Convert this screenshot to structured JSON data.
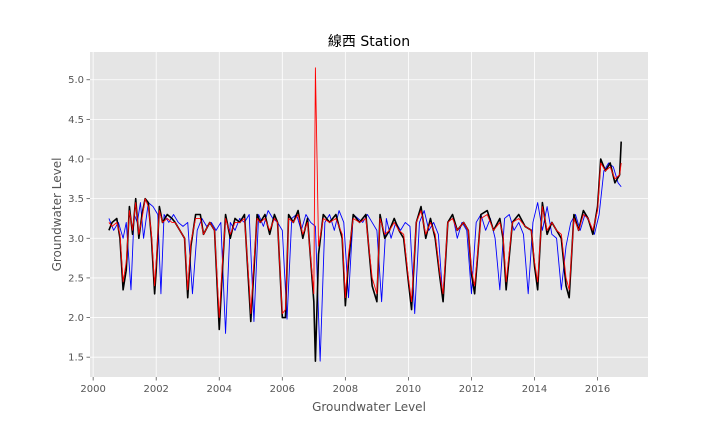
{
  "chart_data": {
    "type": "line",
    "title": "線西 Station",
    "xlabel": "Groundwater Level",
    "ylabel": "Groundwater Level",
    "xlim": [
      1999.9,
      2017.6
    ],
    "ylim": [
      1.25,
      5.35
    ],
    "x_ticks": [
      2000,
      2002,
      2004,
      2006,
      2008,
      2010,
      2012,
      2014,
      2016
    ],
    "y_ticks": [
      1.5,
      2.0,
      2.5,
      3.0,
      3.5,
      4.0,
      4.5,
      5.0
    ],
    "grid": true,
    "legend": "none",
    "colors": {
      "background": "#e5e5e5",
      "grid": "#ffffff",
      "black_series": "#000000",
      "red_series": "#ff0000",
      "blue_series": "#0000ff"
    },
    "series": [
      {
        "color": "#000000",
        "x": [
          2000.5,
          2000.6,
          2000.75,
          2000.85,
          2000.95,
          2001.05,
          2001.15,
          2001.25,
          2001.35,
          2001.45,
          2001.55,
          2001.65,
          2001.75,
          2001.85,
          2001.95,
          2002.0,
          2002.1,
          2002.2,
          2002.35,
          2002.5,
          2002.6,
          2002.75,
          2002.9,
          2003.0,
          2003.1,
          2003.25,
          2003.4,
          2003.5,
          2003.7,
          2003.85,
          2004.0,
          2004.1,
          2004.2,
          2004.35,
          2004.5,
          2004.65,
          2004.8,
          2004.95,
          2005.0,
          2005.1,
          2005.2,
          2005.3,
          2005.45,
          2005.6,
          2005.75,
          2005.85,
          2006.0,
          2006.1,
          2006.2,
          2006.35,
          2006.5,
          2006.65,
          2006.8,
          2007.0,
          2007.05,
          2007.15,
          2007.3,
          2007.5,
          2007.7,
          2007.9,
          2008.0,
          2008.1,
          2008.25,
          2008.45,
          2008.65,
          2008.85,
          2009.0,
          2009.1,
          2009.25,
          2009.4,
          2009.55,
          2009.7,
          2009.85,
          2010.0,
          2010.1,
          2010.25,
          2010.4,
          2010.55,
          2010.7,
          2010.85,
          2011.0,
          2011.1,
          2011.25,
          2011.4,
          2011.55,
          2011.75,
          2011.9,
          2012.0,
          2012.1,
          2012.3,
          2012.5,
          2012.7,
          2012.9,
          2013.0,
          2013.1,
          2013.3,
          2013.5,
          2013.7,
          2013.9,
          2014.0,
          2014.1,
          2014.25,
          2014.4,
          2014.55,
          2014.7,
          2014.85,
          2015.0,
          2015.1,
          2015.25,
          2015.4,
          2015.55,
          2015.7,
          2015.85,
          2016.0,
          2016.1,
          2016.25,
          2016.4,
          2016.55,
          2016.7,
          2016.75
        ],
        "values": [
          3.1,
          3.2,
          3.25,
          3.0,
          2.35,
          2.6,
          3.4,
          3.05,
          3.5,
          3.0,
          3.3,
          3.5,
          3.45,
          3.0,
          2.3,
          2.6,
          3.4,
          3.2,
          3.3,
          3.25,
          3.2,
          3.1,
          3.0,
          2.25,
          2.9,
          3.3,
          3.3,
          3.05,
          3.2,
          3.1,
          1.85,
          2.6,
          3.3,
          3.0,
          3.25,
          3.2,
          3.3,
          2.3,
          1.95,
          2.6,
          3.3,
          3.2,
          3.3,
          3.05,
          3.3,
          3.2,
          2.0,
          2.0,
          3.3,
          3.2,
          3.35,
          3.0,
          3.25,
          2.2,
          1.45,
          2.8,
          3.3,
          3.2,
          3.3,
          3.0,
          2.15,
          2.7,
          3.3,
          3.2,
          3.3,
          2.4,
          2.2,
          3.3,
          3.0,
          3.1,
          3.25,
          3.1,
          3.0,
          2.45,
          2.1,
          3.2,
          3.4,
          3.0,
          3.25,
          3.0,
          2.5,
          2.2,
          3.2,
          3.3,
          3.1,
          3.2,
          3.1,
          2.55,
          2.3,
          3.3,
          3.35,
          3.1,
          3.25,
          3.0,
          2.35,
          3.2,
          3.3,
          3.15,
          3.1,
          2.65,
          2.35,
          3.45,
          3.05,
          3.2,
          3.1,
          3.0,
          2.4,
          2.25,
          3.3,
          3.1,
          3.35,
          3.25,
          3.05,
          3.4,
          4.0,
          3.85,
          3.95,
          3.7,
          3.8,
          4.22
        ]
      },
      {
        "color": "#ff0000",
        "x": [
          2000.5,
          2000.6,
          2000.75,
          2000.85,
          2000.95,
          2001.05,
          2001.15,
          2001.25,
          2001.35,
          2001.45,
          2001.55,
          2001.65,
          2001.75,
          2001.85,
          2001.95,
          2002.0,
          2002.1,
          2002.2,
          2002.35,
          2002.5,
          2002.6,
          2002.75,
          2002.9,
          2003.0,
          2003.1,
          2003.25,
          2003.4,
          2003.5,
          2003.7,
          2003.85,
          2004.0,
          2004.1,
          2004.2,
          2004.35,
          2004.5,
          2004.65,
          2004.8,
          2004.95,
          2005.0,
          2005.1,
          2005.2,
          2005.3,
          2005.45,
          2005.6,
          2005.75,
          2005.85,
          2006.0,
          2006.1,
          2006.2,
          2006.35,
          2006.5,
          2006.65,
          2006.8,
          2007.0,
          2007.05,
          2007.15,
          2007.3,
          2007.5,
          2007.7,
          2007.9,
          2008.0,
          2008.1,
          2008.25,
          2008.45,
          2008.65,
          2008.85,
          2009.0,
          2009.1,
          2009.25,
          2009.4,
          2009.55,
          2009.7,
          2009.85,
          2010.0,
          2010.1,
          2010.25,
          2010.4,
          2010.55,
          2010.7,
          2010.85,
          2011.0,
          2011.1,
          2011.25,
          2011.4,
          2011.55,
          2011.75,
          2011.9,
          2012.0,
          2012.1,
          2012.3,
          2012.5,
          2012.7,
          2012.9,
          2013.0,
          2013.1,
          2013.3,
          2013.5,
          2013.7,
          2013.9,
          2014.0,
          2014.1,
          2014.25,
          2014.4,
          2014.55,
          2014.7,
          2014.85,
          2015.0,
          2015.1,
          2015.25,
          2015.4,
          2015.55,
          2015.7,
          2015.85,
          2016.0,
          2016.1,
          2016.25,
          2016.4,
          2016.55,
          2016.7,
          2016.75
        ],
        "values": [
          3.2,
          3.15,
          3.2,
          3.05,
          2.45,
          2.7,
          3.35,
          3.1,
          3.45,
          3.05,
          3.25,
          3.5,
          3.4,
          3.05,
          2.4,
          2.7,
          3.35,
          3.2,
          3.25,
          3.2,
          3.2,
          3.1,
          3.0,
          2.35,
          2.95,
          3.25,
          3.25,
          3.05,
          3.2,
          3.1,
          2.0,
          2.7,
          3.25,
          3.05,
          3.2,
          3.2,
          3.25,
          2.4,
          2.05,
          2.7,
          3.25,
          3.2,
          3.25,
          3.1,
          3.25,
          3.2,
          2.05,
          2.1,
          3.25,
          3.2,
          3.3,
          3.05,
          3.2,
          2.3,
          5.15,
          2.9,
          3.25,
          3.2,
          3.25,
          3.05,
          2.25,
          2.8,
          3.25,
          3.2,
          3.25,
          2.5,
          2.3,
          3.25,
          3.05,
          3.1,
          3.2,
          3.1,
          3.05,
          2.5,
          2.2,
          3.2,
          3.35,
          3.05,
          3.2,
          3.05,
          2.55,
          2.3,
          3.2,
          3.25,
          3.1,
          3.2,
          3.1,
          2.6,
          2.4,
          3.25,
          3.3,
          3.1,
          3.2,
          3.05,
          2.45,
          3.2,
          3.25,
          3.15,
          3.1,
          2.7,
          2.45,
          3.4,
          3.1,
          3.2,
          3.1,
          3.05,
          2.5,
          2.35,
          3.25,
          3.1,
          3.3,
          3.25,
          3.1,
          3.35,
          3.95,
          3.85,
          3.9,
          3.75,
          3.8,
          3.95
        ]
      },
      {
        "color": "#0000ff",
        "x": [
          2000.5,
          2000.65,
          2000.8,
          2000.95,
          2001.05,
          2001.2,
          2001.3,
          2001.4,
          2001.5,
          2001.6,
          2001.75,
          2001.9,
          2002.05,
          2002.15,
          2002.25,
          2002.4,
          2002.55,
          2002.7,
          2002.85,
          2003.0,
          2003.15,
          2003.3,
          2003.45,
          2003.6,
          2003.75,
          2003.9,
          2004.05,
          2004.2,
          2004.35,
          2004.5,
          2004.65,
          2004.8,
          2004.95,
          2005.1,
          2005.25,
          2005.4,
          2005.55,
          2005.7,
          2005.85,
          2006.0,
          2006.15,
          2006.3,
          2006.45,
          2006.6,
          2006.75,
          2006.9,
          2007.05,
          2007.2,
          2007.35,
          2007.5,
          2007.65,
          2007.8,
          2007.95,
          2008.1,
          2008.25,
          2008.4,
          2008.55,
          2008.7,
          2008.85,
          2009.0,
          2009.15,
          2009.3,
          2009.45,
          2009.6,
          2009.75,
          2009.9,
          2010.05,
          2010.2,
          2010.35,
          2010.5,
          2010.65,
          2010.8,
          2010.95,
          2011.1,
          2011.25,
          2011.4,
          2011.55,
          2011.7,
          2011.85,
          2012.0,
          2012.15,
          2012.3,
          2012.45,
          2012.6,
          2012.75,
          2012.9,
          2013.05,
          2013.2,
          2013.35,
          2013.5,
          2013.65,
          2013.8,
          2013.95,
          2014.1,
          2014.25,
          2014.4,
          2014.55,
          2014.7,
          2014.85,
          2015.0,
          2015.15,
          2015.3,
          2015.45,
          2015.6,
          2015.75,
          2015.9,
          2016.05,
          2016.2,
          2016.35,
          2016.5,
          2016.65,
          2016.75
        ],
        "values": [
          3.25,
          3.1,
          3.2,
          3.0,
          3.2,
          2.35,
          3.3,
          3.2,
          3.45,
          3.0,
          3.45,
          3.4,
          3.3,
          2.3,
          3.3,
          3.2,
          3.3,
          3.2,
          3.15,
          3.2,
          2.3,
          3.1,
          3.25,
          3.15,
          3.2,
          3.1,
          3.2,
          1.8,
          3.2,
          3.1,
          3.25,
          3.2,
          3.3,
          1.95,
          3.3,
          3.15,
          3.35,
          3.25,
          3.2,
          3.1,
          1.98,
          3.25,
          3.3,
          3.1,
          3.3,
          3.2,
          3.15,
          1.45,
          3.2,
          3.3,
          3.1,
          3.35,
          3.2,
          2.25,
          3.3,
          3.25,
          3.2,
          3.3,
          3.2,
          3.1,
          2.2,
          3.25,
          3.0,
          3.2,
          3.1,
          3.2,
          3.15,
          2.05,
          3.2,
          3.35,
          3.1,
          3.2,
          3.05,
          2.2,
          3.2,
          3.3,
          3.0,
          3.2,
          3.1,
          2.3,
          3.2,
          3.3,
          3.1,
          3.25,
          3.0,
          2.35,
          3.25,
          3.3,
          3.1,
          3.2,
          3.05,
          2.3,
          3.2,
          3.45,
          3.1,
          3.4,
          3.05,
          3.0,
          2.35,
          2.9,
          3.2,
          3.3,
          3.1,
          3.3,
          3.2,
          3.05,
          3.3,
          3.85,
          3.95,
          3.9,
          3.7,
          3.65
        ]
      }
    ]
  }
}
